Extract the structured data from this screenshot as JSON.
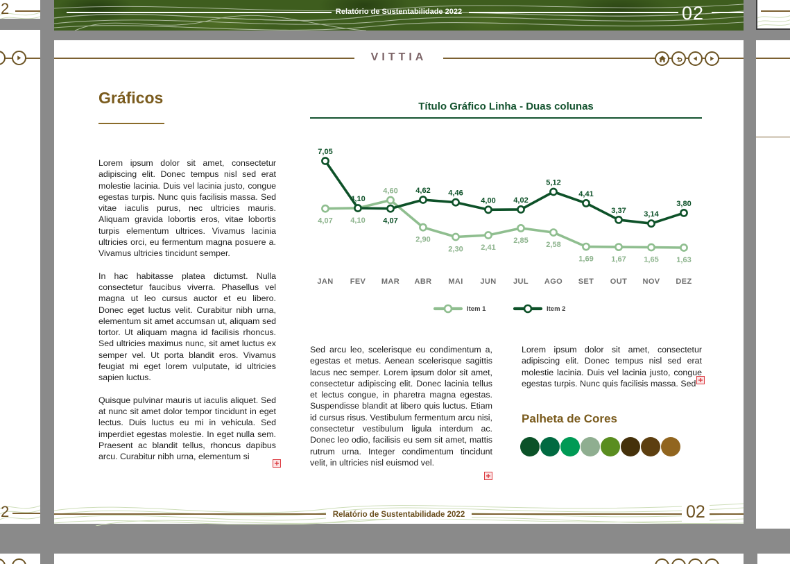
{
  "adjacent_pages": {
    "top_banner": {
      "title": "Relatório de Sustentabilidade 2022",
      "page_number": "02"
    },
    "left_top_page_number": "2",
    "left_bottom_page_number": "2"
  },
  "page": {
    "logo": "VITTIA",
    "nav": {
      "home": "home-icon",
      "back": "return-arrow-icon",
      "previous": "left-arrow-icon",
      "next": "right-arrow-icon"
    },
    "heading": "Gráficos",
    "paragraphs": [
      "Lorem ipsum dolor sit amet, consectetur adipiscing elit. Donec tempus nisl sed erat molestie lacinia. Duis vel lacinia justo, congue egestas turpis. Nunc quis facilisis massa. Sed vitae iaculis purus, nec ultricies mauris. Aliquam gravida lobortis eros, vitae lobortis turpis elementum ultrices. Vivamus lacinia ultricies orci, eu fermentum magna posuere a. Vivamus ultricies tincidunt semper.",
      "In hac habitasse platea dictumst. Nulla consectetur faucibus viverra. Phasellus vel magna ut leo cursus auctor et eu libero. Donec eget luctus velit. Curabitur nibh urna, elementum sit amet accumsan ut, aliquam sed tortor. Ut aliquam magna id facilisis rhoncus. Sed ultricies maximus nunc, sit amet luctus ex semper vel. Ut porta blandit eros. Vivamus feugiat mi eget lorem vulputate, id ultricies sapien luctus.",
      "Quisque pulvinar mauris ut iaculis aliquet. Sed at nunc sit amet dolor tempor tincidunt in eget lectus. Duis luctus eu mi in vehicula. Sed imperdiet egestas molestie. In eget nulla sem. Praesent ac blandit tellus, rhoncus dapibus arcu. Curabitur nibh urna, elementum si"
    ],
    "columns": {
      "middle": "Sed arcu leo, scelerisque eu condimentum a, egestas et metus. Aenean scelerisque sagittis lacus nec semper. Lorem ipsum dolor sit amet, consectetur adipiscing elit. Donec lacinia tellus et lectus congue, in pharetra magna egestas. Suspendisse blandit at libero quis luctus. Etiam id cursus risus. Vestibulum fermentum arcu nisi, consectetur vestibulum ligula interdum ac. Donec leo odio, facilisis eu sem sit amet, mattis rutrum urna. Integer condimentum tincidunt velit, in ultricies nisl euismod vel.",
      "right": "Lorem ipsum dolor sit amet, consectetur adipiscing elit. Donec tempus nisl sed erat molestie lacinia. Duis vel lacinia justo, congue egestas turpis. Nunc quis facilisis massa. Sed"
    },
    "palette": {
      "title": "Palheta de Cores",
      "colors": [
        "#0B5228",
        "#016A41",
        "#009A55",
        "#8FAE90",
        "#5A8D20",
        "#45310B",
        "#5D3F10",
        "#91651F"
      ]
    },
    "footer": {
      "title": "Relatório de Sustentabilidade 2022",
      "page_number": "02"
    }
  },
  "chart_data": {
    "type": "line",
    "title": "Título Gráfico Linha - Duas colunas",
    "categories": [
      "JAN",
      "FEV",
      "MAR",
      "ABR",
      "MAI",
      "JUN",
      "JUL",
      "AGO",
      "SET",
      "OUT",
      "NOV",
      "DEZ"
    ],
    "series": [
      {
        "name": "Item 1",
        "color": "#8FBE8F",
        "label_color": "#8CB38C",
        "values": [
          4.07,
          4.1,
          4.6,
          2.9,
          2.3,
          2.41,
          2.85,
          2.58,
          1.69,
          1.67,
          1.65,
          1.63
        ],
        "labels": [
          "4,07",
          "4,10",
          "4,60",
          "2,90",
          "2,30",
          "2,41",
          "2,85",
          "2,58",
          "1,69",
          "1,67",
          "1,65",
          "1,63"
        ]
      },
      {
        "name": "Item 2",
        "color": "#0D5128",
        "label_color": "#0D5128",
        "values": [
          7.05,
          4.1,
          4.07,
          4.62,
          4.46,
          4.0,
          4.02,
          5.12,
          4.41,
          3.37,
          3.14,
          3.8
        ],
        "labels": [
          "7,05",
          "4,10",
          "4,07",
          "4,62",
          "4,46",
          "4,00",
          "4,02",
          "5,12",
          "4,41",
          "3,37",
          "3,14",
          "3,80"
        ]
      }
    ],
    "legend_position": "bottom",
    "grid": false,
    "value_range": [
      1.63,
      7.05
    ],
    "axis_label_color": "#6E6E6E"
  }
}
